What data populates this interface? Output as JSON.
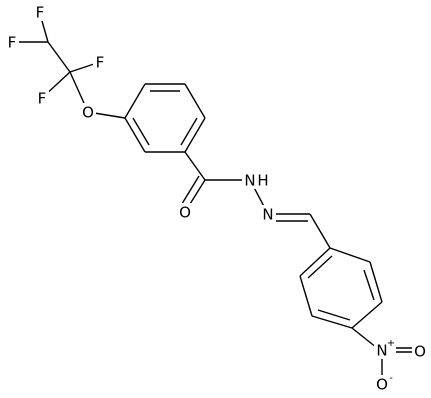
{
  "atoms": [
    {
      "label": "F"
    },
    {
      "label": "F"
    },
    {
      "label": "F"
    },
    {
      "label": "F"
    },
    {
      "label": "O"
    },
    {
      "label": "O"
    },
    {
      "label": "N",
      "suffix": "H"
    },
    {
      "label": "N"
    },
    {
      "label": "N",
      "charge": "+"
    },
    {
      "label": "O"
    },
    {
      "label": "O",
      "charge": "-"
    }
  ]
}
